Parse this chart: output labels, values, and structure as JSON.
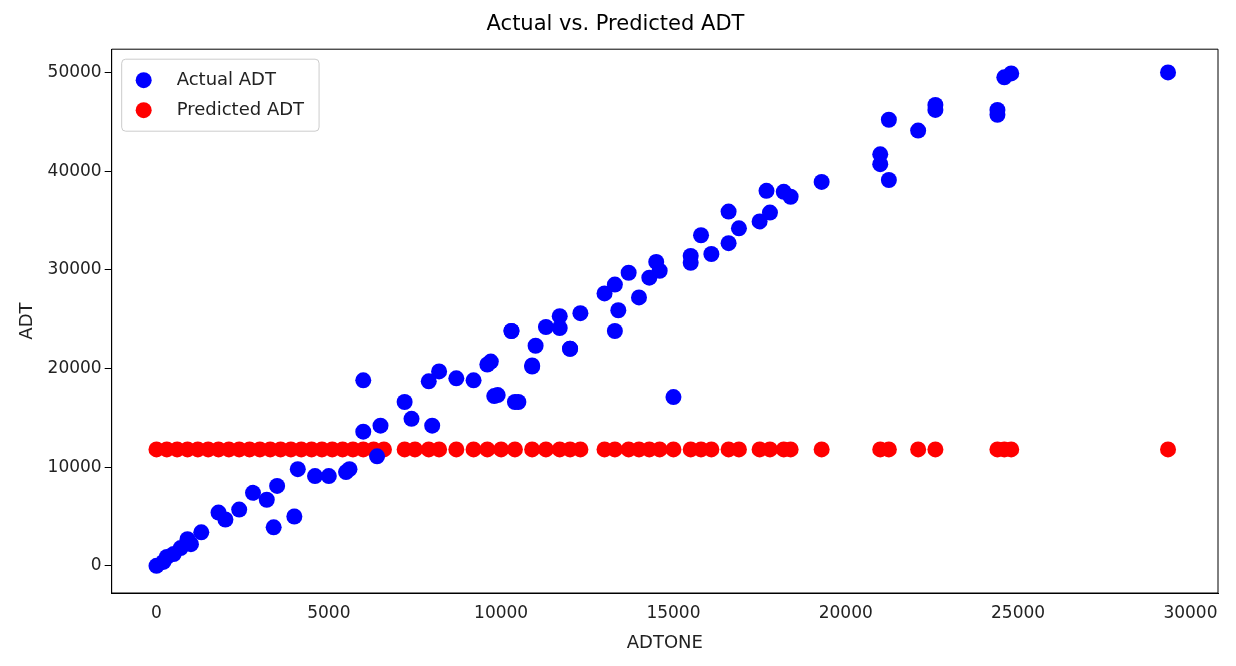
{
  "chart_data": {
    "type": "scatter",
    "title": "Actual vs. Predicted ADT",
    "xlabel": "ADTONE",
    "ylabel": "ADT",
    "x": [
      0,
      200,
      300,
      500,
      700,
      900,
      1000,
      1300,
      1800,
      2000,
      2400,
      2800,
      3200,
      3400,
      3500,
      4000,
      4100,
      4600,
      5000,
      5500,
      5600,
      6000,
      6000,
      6400,
      6500,
      7200,
      7400,
      7900,
      8000,
      8200,
      8700,
      9200,
      9600,
      9700,
      9800,
      9900,
      10300,
      10300,
      10400,
      10500,
      10900,
      10900,
      11000,
      11300,
      11700,
      11700,
      12000,
      12000,
      12300,
      13000,
      13300,
      13300,
      13400,
      13700,
      14000,
      14300,
      14500,
      14600,
      15000,
      15500,
      15500,
      15800,
      16100,
      16600,
      16600,
      16900,
      17500,
      17700,
      17800,
      18200,
      18400,
      19300,
      21000,
      21000,
      21250,
      21250,
      22100,
      22600,
      22600,
      24400,
      24400,
      24600,
      24800,
      29350
    ],
    "series": [
      {
        "name": "Actual ADT",
        "color": "#0000ff",
        "values": [
          0,
          400,
          900,
          1200,
          1800,
          2700,
          2200,
          3400,
          5400,
          4700,
          5700,
          7400,
          6700,
          3900,
          8100,
          5000,
          9800,
          9100,
          9100,
          9500,
          9800,
          18800,
          13600,
          11100,
          14200,
          16600,
          14900,
          18700,
          14200,
          19700,
          19000,
          18800,
          20400,
          20700,
          17200,
          17300,
          23800,
          23800,
          16600,
          16600,
          20200,
          20300,
          22300,
          24200,
          24100,
          25300,
          22000,
          22000,
          25600,
          27600,
          28500,
          23800,
          25900,
          29700,
          27200,
          29200,
          30800,
          29900,
          17100,
          31400,
          30700,
          33500,
          31600,
          32700,
          35900,
          34200,
          34900,
          38000,
          35800,
          37900,
          37400,
          38900,
          41700,
          40700,
          45200,
          39100,
          44100,
          46700,
          46200,
          46200,
          45700,
          49500,
          49900,
          50000
        ]
      },
      {
        "name": "Predicted ADT",
        "color": "#ff0000",
        "x": [
          0,
          300,
          600,
          900,
          1200,
          1500,
          1800,
          2100,
          2400,
          2700,
          3000,
          3300,
          3600,
          3900,
          4200,
          4500,
          4800,
          5100,
          5400,
          5700,
          6000,
          6300,
          6600,
          7200,
          7500,
          7900,
          8200,
          8700,
          9200,
          9600,
          10000,
          10400,
          10900,
          11300,
          11700,
          12000,
          12300,
          13000,
          13300,
          13700,
          14000,
          14300,
          14600,
          15000,
          15500,
          15800,
          16100,
          16600,
          16900,
          17500,
          17800,
          18200,
          18400,
          19300,
          21000,
          21250,
          22100,
          22600,
          24400,
          24600,
          24800,
          29350
        ],
        "values": [
          11800,
          11800,
          11800,
          11800,
          11800,
          11800,
          11800,
          11800,
          11800,
          11800,
          11800,
          11800,
          11800,
          11800,
          11800,
          11800,
          11800,
          11800,
          11800,
          11800,
          11800,
          11800,
          11800,
          11800,
          11800,
          11800,
          11800,
          11800,
          11800,
          11800,
          11800,
          11800,
          11800,
          11800,
          11800,
          11800,
          11800,
          11800,
          11800,
          11800,
          11800,
          11800,
          11800,
          11800,
          11800,
          11800,
          11800,
          11800,
          11800,
          11800,
          11800,
          11800,
          11800,
          11800,
          11800,
          11800,
          11800,
          11800,
          11800,
          11800,
          11800,
          11800
        ]
      }
    ],
    "xlim": [
      -1300,
      30800
    ],
    "ylim": [
      -2750,
      52350
    ],
    "xticks": [
      0,
      5000,
      10000,
      15000,
      20000,
      25000,
      30000
    ],
    "yticks": [
      0,
      10000,
      20000,
      30000,
      40000,
      50000
    ],
    "grid": false,
    "legend": "top left",
    "marker": "circle"
  }
}
